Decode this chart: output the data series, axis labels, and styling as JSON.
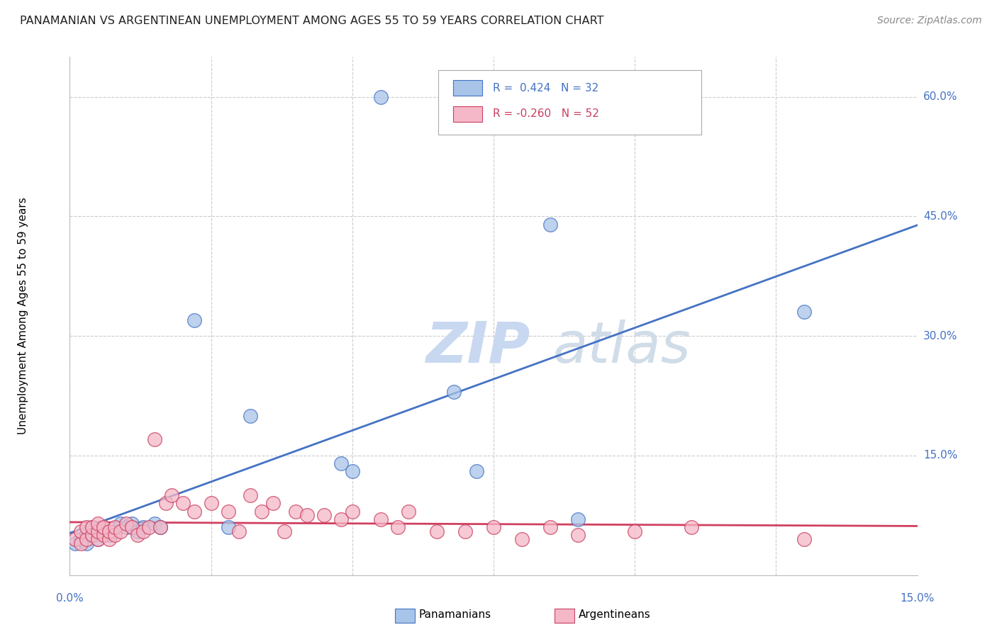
{
  "title": "PANAMANIAN VS ARGENTINEAN UNEMPLOYMENT AMONG AGES 55 TO 59 YEARS CORRELATION CHART",
  "source": "Source: ZipAtlas.com",
  "ylabel": "Unemployment Among Ages 55 to 59 years",
  "ylim": [
    0.0,
    0.65
  ],
  "xlim": [
    0.0,
    0.15
  ],
  "yticks": [
    0.0,
    0.15,
    0.3,
    0.45,
    0.6
  ],
  "ytick_labels": [
    "",
    "15.0%",
    "30.0%",
    "45.0%",
    "60.0%"
  ],
  "blue_color": "#a8c4e8",
  "pink_color": "#f5b8c8",
  "trend_blue": "#4472c4",
  "trend_pink": "#d04060",
  "watermark_zip": "ZIP",
  "watermark_atlas": "atlas",
  "panamanian_x": [
    0.001,
    0.002,
    0.003,
    0.003,
    0.004,
    0.004,
    0.005,
    0.005,
    0.006,
    0.007,
    0.008,
    0.009,
    0.01,
    0.011,
    0.012,
    0.013,
    0.015,
    0.016,
    0.022,
    0.028,
    0.032,
    0.048,
    0.05,
    0.055,
    0.068,
    0.072,
    0.085,
    0.09,
    0.13
  ],
  "panamanian_y": [
    0.04,
    0.045,
    0.04,
    0.05,
    0.05,
    0.06,
    0.045,
    0.055,
    0.055,
    0.05,
    0.055,
    0.065,
    0.06,
    0.065,
    0.055,
    0.06,
    0.065,
    0.06,
    0.32,
    0.06,
    0.2,
    0.14,
    0.13,
    0.6,
    0.23,
    0.13,
    0.44,
    0.07,
    0.33
  ],
  "argentinean_x": [
    0.001,
    0.002,
    0.002,
    0.003,
    0.003,
    0.004,
    0.004,
    0.005,
    0.005,
    0.005,
    0.006,
    0.006,
    0.007,
    0.007,
    0.008,
    0.008,
    0.009,
    0.01,
    0.011,
    0.012,
    0.013,
    0.014,
    0.015,
    0.016,
    0.017,
    0.018,
    0.02,
    0.022,
    0.025,
    0.028,
    0.03,
    0.032,
    0.034,
    0.036,
    0.038,
    0.04,
    0.042,
    0.045,
    0.048,
    0.05,
    0.055,
    0.058,
    0.06,
    0.065,
    0.07,
    0.075,
    0.08,
    0.085,
    0.09,
    0.1,
    0.11,
    0.13
  ],
  "argentinean_y": [
    0.045,
    0.04,
    0.055,
    0.045,
    0.06,
    0.05,
    0.06,
    0.045,
    0.055,
    0.065,
    0.05,
    0.06,
    0.045,
    0.055,
    0.05,
    0.06,
    0.055,
    0.065,
    0.06,
    0.05,
    0.055,
    0.06,
    0.17,
    0.06,
    0.09,
    0.1,
    0.09,
    0.08,
    0.09,
    0.08,
    0.055,
    0.1,
    0.08,
    0.09,
    0.055,
    0.08,
    0.075,
    0.075,
    0.07,
    0.08,
    0.07,
    0.06,
    0.08,
    0.055,
    0.055,
    0.06,
    0.045,
    0.06,
    0.05,
    0.055,
    0.06,
    0.045
  ]
}
